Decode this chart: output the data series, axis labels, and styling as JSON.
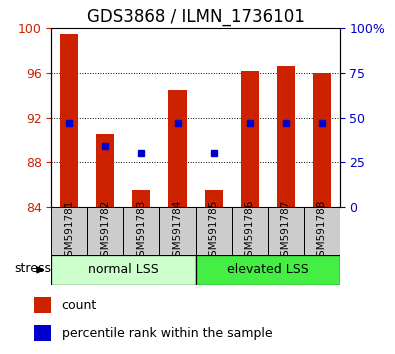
{
  "title": "GDS3868 / ILMN_1736101",
  "categories": [
    "GSM591781",
    "GSM591782",
    "GSM591783",
    "GSM591784",
    "GSM591785",
    "GSM591786",
    "GSM591787",
    "GSM591788"
  ],
  "bar_tops": [
    99.5,
    90.5,
    85.5,
    94.5,
    85.5,
    96.2,
    96.6,
    96.0
  ],
  "bar_bottom": 84.0,
  "blue_markers": [
    91.5,
    89.5,
    88.8,
    91.5,
    88.8,
    91.5,
    91.5,
    91.5
  ],
  "ylim_left": [
    84,
    100
  ],
  "ylim_right": [
    0,
    100
  ],
  "yticks_left": [
    84,
    88,
    92,
    96,
    100
  ],
  "yticks_right": [
    0,
    25,
    50,
    75,
    100
  ],
  "ytick_labels_right": [
    "0",
    "25",
    "50",
    "75",
    "100%"
  ],
  "bar_color": "#cc2200",
  "marker_color": "#0000cc",
  "group1_label": "normal LSS",
  "group2_label": "elevated LSS",
  "group1_indices": [
    0,
    1,
    2,
    3
  ],
  "group2_indices": [
    4,
    5,
    6,
    7
  ],
  "group1_color": "#ccffcc",
  "group2_color": "#44ee44",
  "stress_label": "stress",
  "legend_count_label": "count",
  "legend_pct_label": "percentile rank within the sample",
  "bg_color": "#ffffff",
  "bar_width": 0.5,
  "tick_bg_color": "#cccccc",
  "grid_color": "#000000",
  "title_fontsize": 12,
  "tick_fontsize": 9,
  "group_fontsize": 9,
  "legend_fontsize": 9
}
